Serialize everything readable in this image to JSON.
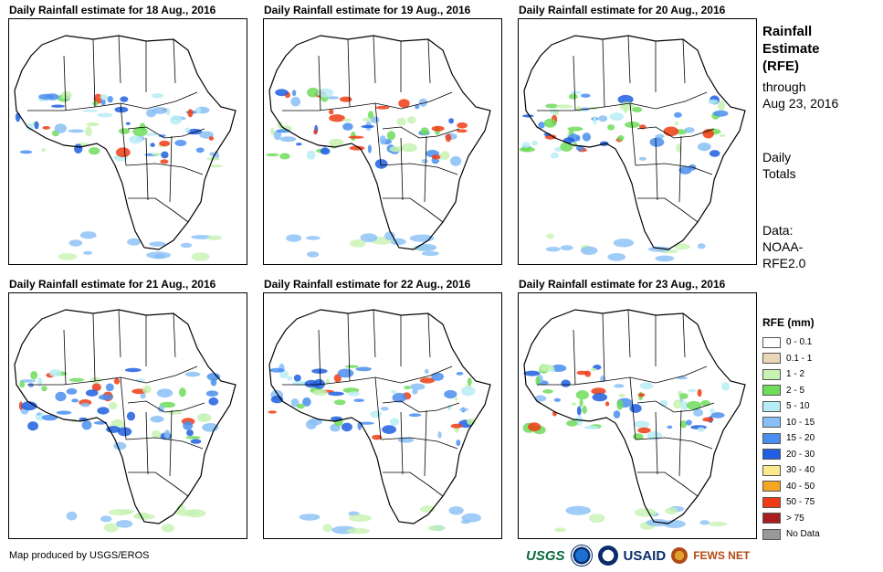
{
  "panels": [
    {
      "title": "Daily Rainfall estimate for 18 Aug., 2016"
    },
    {
      "title": "Daily Rainfall estimate for 19 Aug., 2016"
    },
    {
      "title": "Daily Rainfall estimate for 20 Aug., 2016"
    },
    {
      "title": "Daily Rainfall estimate for 21 Aug., 2016"
    },
    {
      "title": "Daily Rainfall estimate for 22 Aug., 2016"
    },
    {
      "title": "Daily Rainfall estimate for 23 Aug., 2016"
    }
  ],
  "sidebar": {
    "title_1": "Rainfall",
    "title_2": "Estimate",
    "title_3": "(RFE)",
    "through_1": "through",
    "through_2": "Aug 23, 2016",
    "totals_1": "Daily",
    "totals_2": "Totals",
    "data_1": "Data:",
    "data_2": "NOAA-",
    "data_3": "RFE2.0"
  },
  "legend": {
    "title": "RFE (mm)",
    "items": [
      {
        "label": "0 - 0.1",
        "color": "#ffffff"
      },
      {
        "label": "0.1 - 1",
        "color": "#e8d8b8"
      },
      {
        "label": "1 - 2",
        "color": "#c7f2b2"
      },
      {
        "label": "2 - 5",
        "color": "#6fdc5a"
      },
      {
        "label": "5 - 10",
        "color": "#b8ecf4"
      },
      {
        "label": "10 - 15",
        "color": "#88bff6"
      },
      {
        "label": "15 - 20",
        "color": "#4a8ef0"
      },
      {
        "label": "20 - 30",
        "color": "#1f5fe0"
      },
      {
        "label": "30 - 40",
        "color": "#fce98c"
      },
      {
        "label": "40 - 50",
        "color": "#f5a623"
      },
      {
        "label": "50 - 75",
        "color": "#f03c14"
      },
      {
        "label": "> 75",
        "color": "#a81e1e"
      },
      {
        "label": "No Data",
        "color": "#999999"
      }
    ]
  },
  "credit": "Map produced by USGS/EROS",
  "logos": {
    "usgs": "USGS",
    "usaid": "USAID",
    "fews": "FEWS NET"
  }
}
